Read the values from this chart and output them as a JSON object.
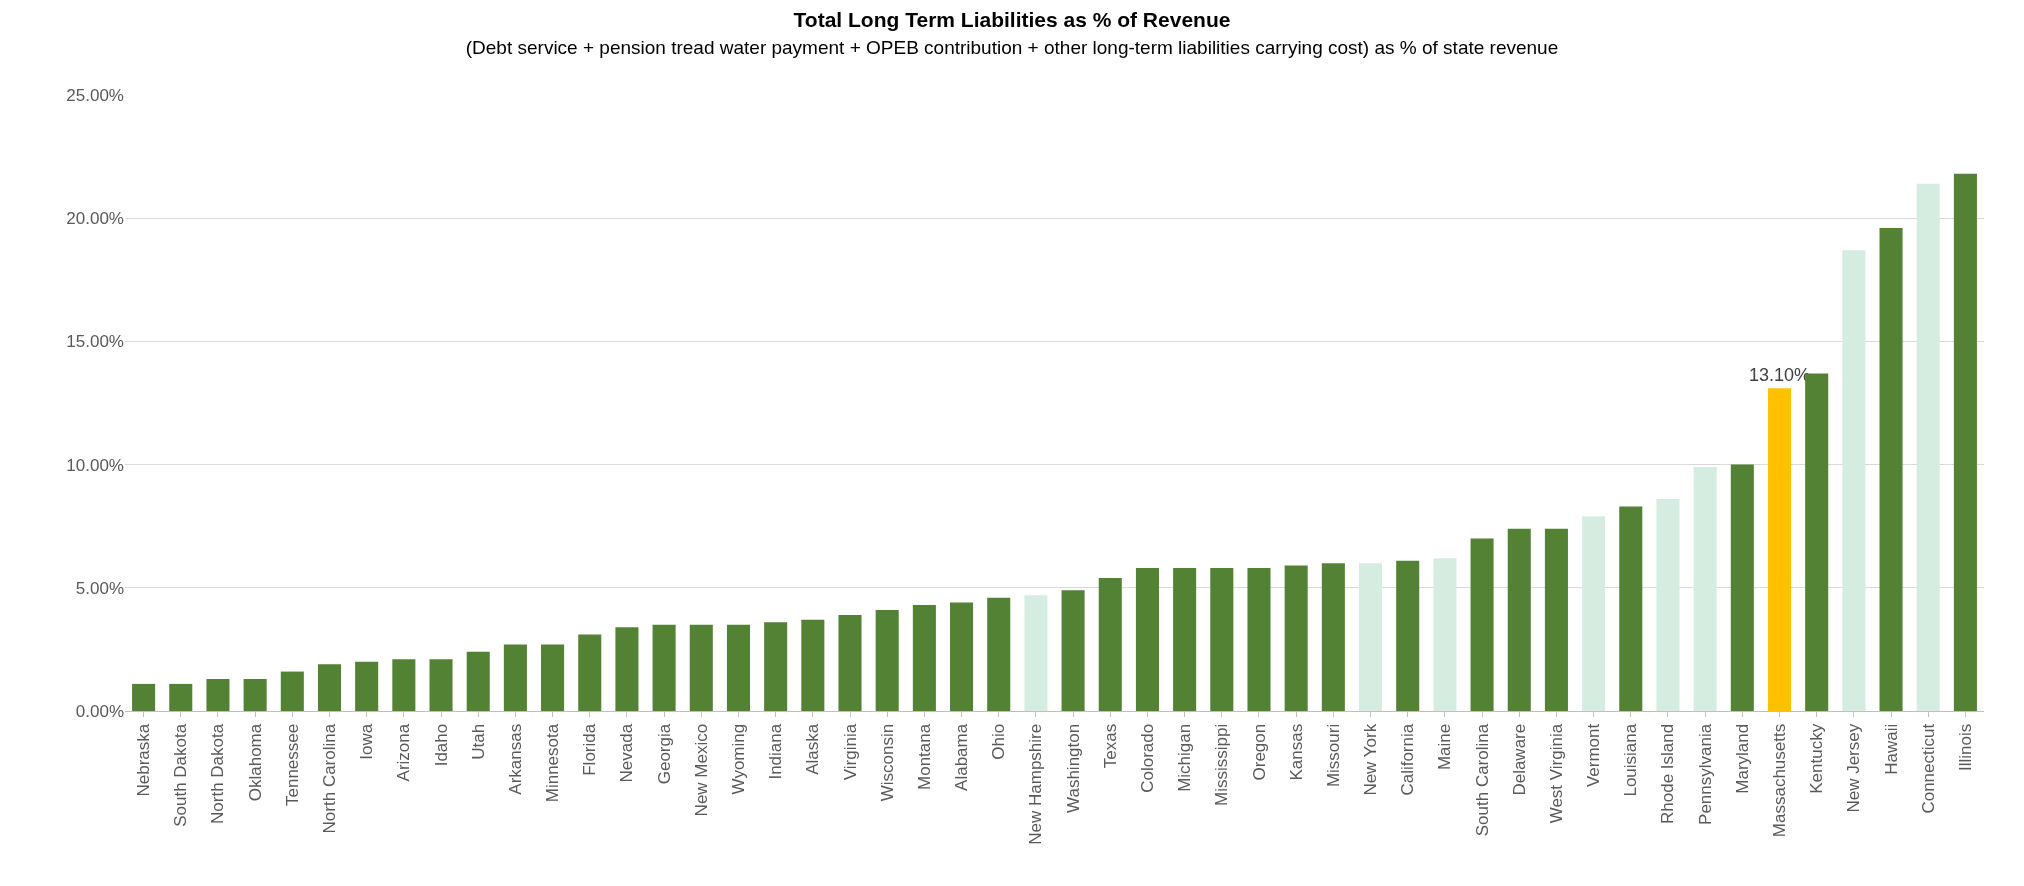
{
  "chart_data": {
    "type": "bar",
    "title": "Total Long Term Liabilities as % of Revenue",
    "subtitle": "(Debt service + pension tread water payment + OPEB contribution + other long-term liabilities carrying cost) as % of state revenue",
    "categories": [
      "Nebraska",
      "South Dakota",
      "North Dakota",
      "Oklahoma",
      "Tennessee",
      "North Carolina",
      "Iowa",
      "Arizona",
      "Idaho",
      "Utah",
      "Arkansas",
      "Minnesota",
      "Florida",
      "Nevada",
      "Georgia",
      "New Mexico",
      "Wyoming",
      "Indiana",
      "Alaska",
      "Virginia",
      "Wisconsin",
      "Montana",
      "Alabama",
      "Ohio",
      "New Hampshire",
      "Washington",
      "Texas",
      "Colorado",
      "Michigan",
      "Mississippi",
      "Oregon",
      "Kansas",
      "Missouri",
      "New York",
      "California",
      "Maine",
      "South Carolina",
      "Delaware",
      "West Virginia",
      "Vermont",
      "Louisiana",
      "Rhode Island",
      "Pennsylvania",
      "Maryland",
      "Massachusetts",
      "Kentucky",
      "New Jersey",
      "Hawaii",
      "Connecticut",
      "Illinois"
    ],
    "values": [
      1.1,
      1.1,
      1.3,
      1.3,
      1.6,
      1.9,
      2.0,
      2.1,
      2.1,
      2.4,
      2.7,
      2.7,
      3.1,
      3.4,
      3.5,
      3.5,
      3.5,
      3.6,
      3.7,
      3.9,
      4.1,
      4.3,
      4.4,
      4.6,
      4.7,
      4.9,
      5.4,
      5.8,
      5.8,
      5.8,
      5.8,
      5.9,
      6.0,
      6.0,
      6.1,
      6.2,
      7.0,
      7.4,
      7.4,
      7.9,
      8.3,
      8.6,
      9.9,
      10.0,
      13.1,
      13.7,
      18.7,
      19.6,
      21.4,
      21.8
    ],
    "colors": [
      "#548235",
      "#548235",
      "#548235",
      "#548235",
      "#548235",
      "#548235",
      "#548235",
      "#548235",
      "#548235",
      "#548235",
      "#548235",
      "#548235",
      "#548235",
      "#548235",
      "#548235",
      "#548235",
      "#548235",
      "#548235",
      "#548235",
      "#548235",
      "#548235",
      "#548235",
      "#548235",
      "#548235",
      "#d5ede0",
      "#548235",
      "#548235",
      "#548235",
      "#548235",
      "#548235",
      "#548235",
      "#548235",
      "#548235",
      "#d5ede0",
      "#548235",
      "#d5ede0",
      "#548235",
      "#548235",
      "#548235",
      "#d5ede0",
      "#548235",
      "#d5ede0",
      "#d5ede0",
      "#548235",
      "#ffc000",
      "#548235",
      "#d5ede0",
      "#548235",
      "#d5ede0",
      "#548235"
    ],
    "value_labels": [
      null,
      null,
      null,
      null,
      null,
      null,
      null,
      null,
      null,
      null,
      null,
      null,
      null,
      null,
      null,
      null,
      null,
      null,
      null,
      null,
      null,
      null,
      null,
      null,
      null,
      null,
      null,
      null,
      null,
      null,
      null,
      null,
      null,
      null,
      null,
      null,
      null,
      null,
      null,
      null,
      null,
      null,
      null,
      null,
      "13.10%",
      null,
      null,
      null,
      null,
      null
    ],
    "ylim": [
      0,
      25
    ],
    "yticks": [
      {
        "value": 0,
        "label": "0.00%"
      },
      {
        "value": 5,
        "label": "5.00%"
      },
      {
        "value": 10,
        "label": "10.00%"
      },
      {
        "value": 15,
        "label": "15.00%"
      },
      {
        "value": 20,
        "label": "20.00%"
      },
      {
        "value": 25,
        "label": "25.00%"
      }
    ],
    "grid": "y"
  }
}
